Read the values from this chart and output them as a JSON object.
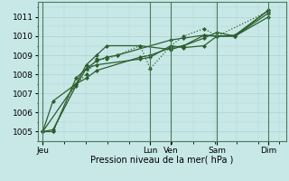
{
  "background_color": "#c8e8e8",
  "grid_color": "#b0d0d0",
  "line_color": "#2d5f2d",
  "marker_color": "#2d5f2d",
  "xlabel": "Pression niveau de la mer( hPa )",
  "ylim": [
    1004.5,
    1011.8
  ],
  "yticks": [
    1005,
    1006,
    1007,
    1008,
    1009,
    1010,
    1011
  ],
  "xtick_labels": [
    "Jeu",
    "Lun",
    "Ven",
    "Sam",
    "Dim"
  ],
  "xtick_positions": [
    0.0,
    0.42,
    0.5,
    0.68,
    0.88
  ],
  "vline_positions": [
    0.0,
    0.42,
    0.5,
    0.68,
    0.88
  ],
  "series_styles": [
    {
      "ls": ":",
      "lw": 0.9
    },
    {
      "ls": "-",
      "lw": 0.9
    },
    {
      "ls": "-",
      "lw": 0.9
    },
    {
      "ls": "-",
      "lw": 0.9
    },
    {
      "ls": "-",
      "lw": 0.9
    }
  ],
  "series_x": [
    [
      0.0,
      0.04,
      0.13,
      0.17,
      0.21,
      0.25,
      0.29,
      0.38,
      0.42,
      0.5,
      0.55,
      0.63,
      0.68,
      0.88
    ],
    [
      0.0,
      0.04,
      0.13,
      0.17,
      0.21,
      0.25,
      0.29,
      0.5,
      0.55,
      0.63,
      0.68,
      0.75,
      0.88
    ],
    [
      0.0,
      0.04,
      0.13,
      0.17,
      0.21,
      0.38,
      0.42,
      0.5,
      0.55,
      0.63,
      0.68,
      0.75,
      0.88
    ],
    [
      0.0,
      0.04,
      0.13,
      0.17,
      0.21,
      0.38,
      0.42,
      0.5,
      0.55,
      0.63,
      0.68,
      0.75,
      0.88
    ],
    [
      0.0,
      0.13,
      0.17,
      0.21,
      0.25,
      0.38,
      0.5,
      0.55,
      0.63,
      0.68,
      0.75,
      0.88
    ]
  ],
  "series_y": [
    [
      1005.0,
      1005.0,
      1007.5,
      1008.0,
      1008.8,
      1008.8,
      1009.0,
      1009.5,
      1008.3,
      1009.5,
      1010.0,
      1010.4,
      1010.0,
      1011.3
    ],
    [
      1005.0,
      1005.0,
      1007.8,
      1008.3,
      1008.7,
      1008.9,
      1009.0,
      1009.8,
      1009.9,
      1010.05,
      1010.0,
      1010.0,
      1011.0
    ],
    [
      1005.0,
      1005.1,
      1007.4,
      1008.3,
      1008.5,
      1008.8,
      1008.9,
      1009.5,
      1009.4,
      1009.5,
      1010.0,
      1010.0,
      1011.2
    ],
    [
      1005.0,
      1006.6,
      1007.5,
      1007.8,
      1008.2,
      1008.9,
      1009.0,
      1009.4,
      1009.5,
      1009.9,
      1010.2,
      1010.0,
      1011.35
    ],
    [
      1005.0,
      1007.5,
      1008.5,
      1009.0,
      1009.5,
      1009.5,
      1009.3,
      1009.5,
      1010.05,
      1010.0,
      1010.05,
      1011.35
    ]
  ]
}
